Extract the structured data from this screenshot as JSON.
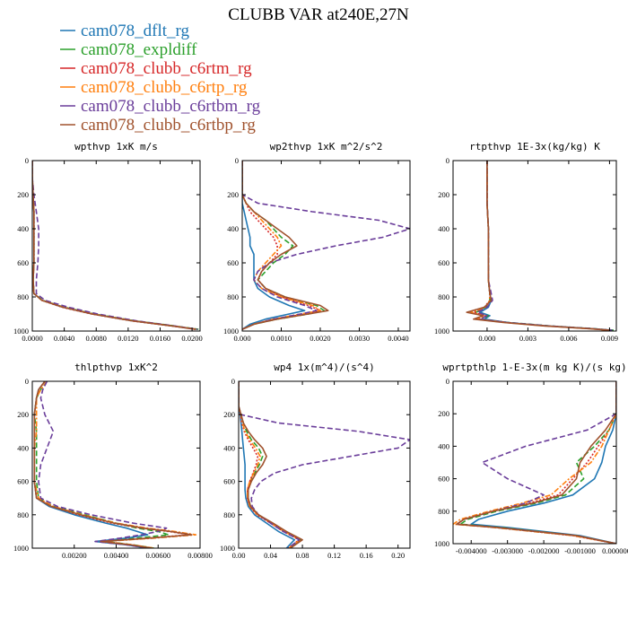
{
  "figure": {
    "title": "CLUBB VAR at240E,27N"
  },
  "legend": [
    {
      "label": "cam078_dflt_rg",
      "color": "#1f77b4",
      "dash": "solid"
    },
    {
      "label": "cam078_expldiff",
      "color": "#2ca02c",
      "dash": "dashed"
    },
    {
      "label": "cam078_clubb_c6rtm_rg",
      "color": "#d62728",
      "dash": "dotted"
    },
    {
      "label": "cam078_clubb_c6rtp_rg",
      "color": "#ff7f0e",
      "dash": "dashdot"
    },
    {
      "label": "cam078_clubb_c6rtbm_rg",
      "color": "#6a3d9a",
      "dash": "dashed"
    },
    {
      "label": "cam078_clubb_c6rtbp_rg",
      "color": "#a0522d",
      "dash": "solid"
    }
  ],
  "chart_data": [
    {
      "type": "line",
      "title": "wpthvp  1xK m/s",
      "ylim": [
        0,
        1000
      ],
      "yticks": [
        "0",
        "200",
        "400",
        "600",
        "800",
        "1000"
      ],
      "xlim": [
        0,
        0.021
      ],
      "xticks": [
        [
          0,
          "0.0000"
        ],
        [
          0.004,
          "0.0040"
        ],
        [
          0.008,
          "0.0080"
        ],
        [
          0.012,
          "0.0120"
        ],
        [
          0.016,
          "0.0160"
        ],
        [
          0.02,
          "0.0200"
        ]
      ],
      "p": [
        0,
        100,
        200,
        300,
        400,
        500,
        600,
        700,
        780,
        820,
        860,
        900,
        940,
        970,
        990
      ],
      "series": [
        {
          "values": [
            0,
            0,
            0.0001,
            0.0002,
            0.0002,
            0.0002,
            0.0002,
            0.0001,
            0.0002,
            0.0012,
            0.0038,
            0.0075,
            0.0125,
            0.0175,
            0.0205
          ]
        },
        {
          "values": [
            0,
            0,
            0.0001,
            0.0002,
            0.0002,
            0.0002,
            0.0002,
            0.0001,
            0.0002,
            0.0013,
            0.004,
            0.0078,
            0.0128,
            0.0178,
            0.0208
          ]
        },
        {
          "values": [
            0,
            0,
            0.0001,
            0.0002,
            0.0002,
            0.0002,
            0.0002,
            0.0001,
            0.0002,
            0.0012,
            0.0037,
            0.0074,
            0.0124,
            0.0174,
            0.0204
          ]
        },
        {
          "values": [
            0,
            0,
            0.0001,
            0.0002,
            0.0002,
            0.0002,
            0.0002,
            0.0001,
            0.0002,
            0.0012,
            0.0039,
            0.0076,
            0.0126,
            0.0176,
            0.0206
          ]
        },
        {
          "values": [
            0,
            0,
            0.0002,
            0.0005,
            0.0008,
            0.0008,
            0.0007,
            0.0005,
            0.0005,
            0.0016,
            0.0045,
            0.0082,
            0.013,
            0.0178,
            0.0207
          ]
        },
        {
          "values": [
            0,
            0,
            0.0001,
            0.0002,
            0.0002,
            0.0002,
            0.0002,
            0.0001,
            0.0002,
            0.0012,
            0.0038,
            0.0075,
            0.0125,
            0.0175,
            0.0205
          ]
        }
      ]
    },
    {
      "type": "line",
      "title": "wp2thvp  1xK m^2/s^2",
      "ylim": [
        0,
        1000
      ],
      "yticks": [
        "0",
        "200",
        "400",
        "600",
        "800",
        "1000"
      ],
      "xlim": [
        0,
        0.0043
      ],
      "xticks": [
        [
          0,
          "0.000"
        ],
        [
          0.001,
          "0.0010"
        ],
        [
          0.002,
          "0.0020"
        ],
        [
          0.003,
          "0.0030"
        ],
        [
          0.004,
          "0.0040"
        ]
      ],
      "p": [
        0,
        200,
        250,
        300,
        350,
        400,
        450,
        500,
        550,
        600,
        650,
        700,
        750,
        800,
        850,
        880,
        900,
        930,
        960,
        990
      ],
      "series": [
        {
          "values": [
            0,
            0,
            0,
            5e-05,
            0.0001,
            0.00015,
            0.0002,
            0.0002,
            0.0003,
            0.0003,
            0.0003,
            0.0003,
            0.0004,
            0.0007,
            0.0012,
            0.0016,
            0.0012,
            0.0006,
            0.0002,
            0
          ]
        },
        {
          "values": [
            0,
            0,
            0.0001,
            0.0003,
            0.0006,
            0.0008,
            0.001,
            0.0013,
            0.0011,
            0.0008,
            0.0006,
            0.0004,
            0.0006,
            0.0011,
            0.0019,
            0.0021,
            0.0017,
            0.0009,
            0.0003,
            0
          ]
        },
        {
          "values": [
            0,
            0,
            0.0001,
            0.0002,
            0.0004,
            0.0006,
            0.0008,
            0.0009,
            0.0009,
            0.0007,
            0.0005,
            0.0004,
            0.0006,
            0.001,
            0.0017,
            0.002,
            0.0016,
            0.0008,
            0.0003,
            0
          ]
        },
        {
          "values": [
            0,
            0,
            0.0001,
            0.0003,
            0.0005,
            0.0007,
            0.0009,
            0.001,
            0.0008,
            0.0006,
            0.0004,
            0.0003,
            0.0005,
            0.001,
            0.0018,
            0.002,
            0.0015,
            0.0008,
            0.0003,
            0
          ]
        },
        {
          "values": [
            0,
            0,
            0.0004,
            0.0018,
            0.0035,
            0.0043,
            0.0036,
            0.0024,
            0.0014,
            0.0007,
            0.0004,
            0.0003,
            0.0005,
            0.0009,
            0.0016,
            0.0019,
            0.0015,
            0.0008,
            0.0003,
            0
          ]
        },
        {
          "values": [
            0,
            0,
            0.0001,
            0.0003,
            0.0006,
            0.0009,
            0.0012,
            0.0014,
            0.001,
            0.0007,
            0.0005,
            0.0004,
            0.0006,
            0.0011,
            0.002,
            0.0022,
            0.0017,
            0.0009,
            0.0003,
            0
          ]
        }
      ]
    },
    {
      "type": "line",
      "title": "rtpthvp  1E-3x(kg/kg) K",
      "ylim": [
        0,
        1000
      ],
      "yticks": [
        "0",
        "200",
        "400",
        "600",
        "800",
        "1000"
      ],
      "xlim": [
        -0.0025,
        0.0095
      ],
      "xticks": [
        [
          0,
          "0.000"
        ],
        [
          0.003,
          "0.003"
        ],
        [
          0.006,
          "0.006"
        ],
        [
          0.009,
          "0.009"
        ]
      ],
      "p": [
        0,
        250,
        400,
        600,
        700,
        780,
        820,
        860,
        890,
        910,
        930,
        950,
        970,
        985,
        995
      ],
      "series": [
        {
          "values": [
            0,
            0,
            0.0001,
            0.0001,
            0.0001,
            0.0002,
            0.0003,
            0.0001,
            -0.0005,
            0.0002,
            -0.0002,
            0.0015,
            0.0045,
            0.0075,
            0.0092
          ]
        },
        {
          "values": [
            0,
            0,
            0.0001,
            0.0001,
            0.0001,
            0.0002,
            0.0002,
            -0.0001,
            -0.0008,
            0.0001,
            -0.0004,
            0.0016,
            0.0046,
            0.0076,
            0.0093
          ]
        },
        {
          "values": [
            0,
            0,
            0.0001,
            0.0001,
            0.0001,
            0.0002,
            0.0002,
            -0.0002,
            -0.001,
            -0.0001,
            -0.0006,
            0.0014,
            0.0044,
            0.0074,
            0.0091
          ]
        },
        {
          "values": [
            0,
            0,
            0.0001,
            0.0001,
            0.0001,
            0.0002,
            0.0002,
            -0.0001,
            -0.0012,
            -0.0002,
            -0.0008,
            0.0013,
            0.0043,
            0.0073,
            0.009
          ]
        },
        {
          "values": [
            0,
            0,
            0.0001,
            0.0001,
            0.0001,
            0.0003,
            0.0004,
            0.0,
            -0.0007,
            0.0,
            -0.0005,
            0.0015,
            0.0045,
            0.0075,
            0.0092
          ]
        },
        {
          "values": [
            0,
            0,
            0.0001,
            0.0001,
            0.0001,
            0.0002,
            0.0003,
            -0.0002,
            -0.0015,
            -0.0003,
            -0.001,
            0.0012,
            0.0042,
            0.0072,
            0.009
          ]
        }
      ]
    },
    {
      "type": "line",
      "title": "thlpthvp  1xK^2",
      "ylim": [
        0,
        1000
      ],
      "yticks": [
        "0",
        "200",
        "400",
        "600",
        "800",
        "1000"
      ],
      "xlim": [
        0,
        0.008
      ],
      "xticks": [
        [
          0.002,
          "0.00200"
        ],
        [
          0.004,
          "0.00400"
        ],
        [
          0.006,
          "0.00600"
        ],
        [
          0.008,
          "0.00800"
        ]
      ],
      "p": [
        0,
        50,
        100,
        200,
        300,
        400,
        500,
        600,
        700,
        750,
        800,
        850,
        880,
        900,
        920,
        940,
        960,
        980,
        1000
      ],
      "series": [
        {
          "values": [
            0.0006,
            0.0003,
            0.0002,
            0.0001,
            0.0001,
            0.0001,
            0.0001,
            0.0001,
            0.0002,
            0.0008,
            0.002,
            0.0035,
            0.0045,
            0.005,
            0.0055,
            0.0045,
            0.003,
            0.0045,
            0.0055
          ]
        },
        {
          "values": [
            0.0007,
            0.0004,
            0.0002,
            0.0001,
            0.0002,
            0.0002,
            0.0002,
            0.0002,
            0.0003,
            0.001,
            0.0025,
            0.004,
            0.005,
            0.006,
            0.0065,
            0.005,
            0.0035,
            0.0048,
            0.0058
          ]
        },
        {
          "values": [
            0.0006,
            0.0003,
            0.0002,
            0.0001,
            0.0001,
            0.0001,
            0.0001,
            0.0001,
            0.0002,
            0.0009,
            0.0022,
            0.0038,
            0.0052,
            0.0065,
            0.0075,
            0.0055,
            0.0032,
            0.0047,
            0.0057
          ]
        },
        {
          "values": [
            0.0007,
            0.0004,
            0.0002,
            0.0002,
            0.0002,
            0.0001,
            0.0001,
            0.0001,
            0.0003,
            0.001,
            0.0024,
            0.004,
            0.0055,
            0.0068,
            0.0078,
            0.0058,
            0.0034,
            0.0048,
            0.0058
          ]
        },
        {
          "values": [
            0.0007,
            0.0005,
            0.0004,
            0.0006,
            0.001,
            0.0007,
            0.0004,
            0.0003,
            0.0004,
            0.0012,
            0.0028,
            0.0048,
            0.0064,
            0.006,
            0.0052,
            0.0042,
            0.003,
            0.0045,
            0.0055
          ]
        },
        {
          "values": [
            0.0006,
            0.0003,
            0.0002,
            0.0001,
            0.0001,
            0.0001,
            0.0001,
            0.0001,
            0.0002,
            0.0009,
            0.0023,
            0.0039,
            0.0053,
            0.0066,
            0.0076,
            0.0056,
            0.0033,
            0.0047,
            0.0057
          ]
        }
      ]
    },
    {
      "type": "line",
      "title": "wp4  1x(m^4)/(s^4)",
      "ylim": [
        0,
        1000
      ],
      "yticks": [
        "0",
        "200",
        "400",
        "600",
        "800",
        "1000"
      ],
      "xlim": [
        0,
        0.215
      ],
      "xticks": [
        [
          0,
          "0.00"
        ],
        [
          0.04,
          "0.04"
        ],
        [
          0.08,
          "0.08"
        ],
        [
          0.12,
          "0.12"
        ],
        [
          0.16,
          "0.16"
        ],
        [
          0.2,
          "0.20"
        ]
      ],
      "p": [
        0,
        150,
        200,
        250,
        300,
        350,
        400,
        450,
        500,
        550,
        600,
        650,
        700,
        750,
        800,
        850,
        900,
        950,
        1000
      ],
      "series": [
        {
          "values": [
            0,
            0,
            0.002,
            0.003,
            0.004,
            0.005,
            0.006,
            0.007,
            0.008,
            0.008,
            0.008,
            0.008,
            0.009,
            0.012,
            0.02,
            0.035,
            0.05,
            0.07,
            0.06
          ]
        },
        {
          "values": [
            0,
            0,
            0.003,
            0.006,
            0.01,
            0.016,
            0.025,
            0.03,
            0.026,
            0.02,
            0.015,
            0.012,
            0.012,
            0.015,
            0.025,
            0.042,
            0.058,
            0.078,
            0.065
          ]
        },
        {
          "values": [
            0,
            0,
            0.002,
            0.004,
            0.007,
            0.012,
            0.018,
            0.024,
            0.022,
            0.018,
            0.014,
            0.011,
            0.011,
            0.014,
            0.023,
            0.04,
            0.056,
            0.076,
            0.062
          ]
        },
        {
          "values": [
            0,
            0,
            0.003,
            0.005,
            0.008,
            0.014,
            0.021,
            0.027,
            0.024,
            0.019,
            0.014,
            0.011,
            0.011,
            0.014,
            0.024,
            0.041,
            0.057,
            0.077,
            0.063
          ]
        },
        {
          "values": [
            0,
            0,
            0.003,
            0.05,
            0.15,
            0.215,
            0.2,
            0.14,
            0.08,
            0.045,
            0.028,
            0.02,
            0.016,
            0.017,
            0.025,
            0.04,
            0.056,
            0.076,
            0.062
          ]
        },
        {
          "values": [
            0,
            0,
            0.003,
            0.006,
            0.012,
            0.02,
            0.03,
            0.035,
            0.03,
            0.022,
            0.016,
            0.012,
            0.012,
            0.015,
            0.025,
            0.043,
            0.06,
            0.08,
            0.065
          ]
        }
      ]
    },
    {
      "type": "line",
      "title": "wprtpthlp  1-E-3x(m kg K)/(s kg)",
      "ylim": [
        0,
        1000
      ],
      "yticks": [
        "0",
        "200",
        "400",
        "600",
        "800",
        "1000"
      ],
      "xlim": [
        -0.0045,
        0
      ],
      "xticks": [
        [
          -0.004,
          "-0.004000"
        ],
        [
          -0.003,
          "-0.003000"
        ],
        [
          -0.002,
          "-0.002000"
        ],
        [
          -0.001,
          "-0.001000"
        ],
        [
          0,
          "0.000000"
        ]
      ],
      "p": [
        0,
        200,
        300,
        400,
        500,
        600,
        700,
        750,
        800,
        850,
        880,
        900,
        950,
        1000
      ],
      "series": [
        {
          "values": [
            0,
            0,
            -0.0001,
            -0.0003,
            -0.0004,
            -0.0006,
            -0.0012,
            -0.002,
            -0.003,
            -0.0038,
            -0.004,
            -0.003,
            -0.001,
            0
          ]
        },
        {
          "values": [
            0,
            0,
            -0.0002,
            -0.0006,
            -0.0011,
            -0.0009,
            -0.0014,
            -0.0022,
            -0.0033,
            -0.0041,
            -0.0043,
            -0.0032,
            -0.0011,
            0
          ]
        },
        {
          "values": [
            0,
            0,
            -0.0002,
            -0.0005,
            -0.0008,
            -0.0012,
            -0.0016,
            -0.0024,
            -0.0034,
            -0.0042,
            -0.0044,
            -0.0033,
            -0.0012,
            0
          ]
        },
        {
          "values": [
            0,
            0,
            -0.0002,
            -0.0004,
            -0.0007,
            -0.0013,
            -0.0018,
            -0.0026,
            -0.0035,
            -0.0043,
            -0.0045,
            -0.0034,
            -0.0012,
            0
          ]
        },
        {
          "values": [
            0,
            0,
            -0.0008,
            -0.0025,
            -0.0037,
            -0.003,
            -0.002,
            -0.0025,
            -0.0034,
            -0.0042,
            -0.0044,
            -0.0033,
            -0.0011,
            0
          ]
        },
        {
          "values": [
            0,
            0,
            -0.0003,
            -0.0007,
            -0.001,
            -0.0011,
            -0.0015,
            -0.0023,
            -0.0034,
            -0.0042,
            -0.0044,
            -0.0033,
            -0.0011,
            0
          ]
        }
      ]
    }
  ]
}
